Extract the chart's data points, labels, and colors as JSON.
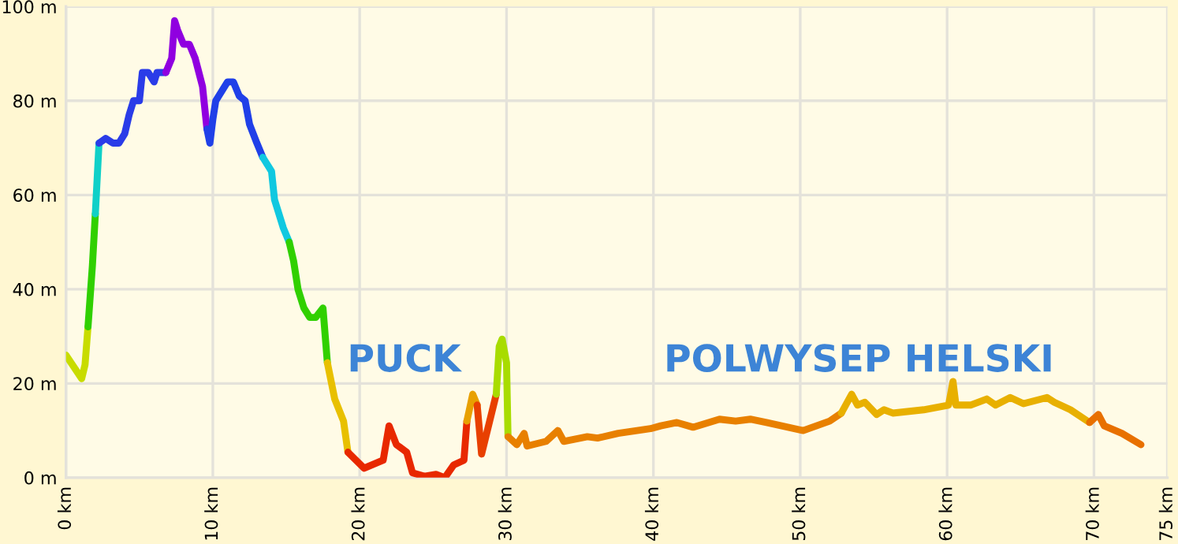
{
  "chart_data": {
    "type": "line",
    "series": [
      {
        "color": "#c8dc00",
        "x": [
          0,
          1.07,
          1.3,
          1.5
        ],
        "values": [
          26,
          21,
          24,
          32
        ]
      },
      {
        "color": "#30d000",
        "x": [
          1.5,
          1.8,
          2.0
        ],
        "values": [
          32,
          45,
          56
        ]
      },
      {
        "color": "#10d0c8",
        "x": [
          2.0,
          2.25
        ],
        "values": [
          56,
          71
        ]
      },
      {
        "color": "#2a3ce8",
        "x": [
          2.25,
          2.7,
          3.2,
          3.6,
          4.0,
          4.3,
          4.6,
          5.0,
          5.2,
          5.6,
          6.0,
          6.2,
          6.8
        ],
        "values": [
          71,
          72,
          71,
          71,
          73,
          77,
          80,
          80,
          86,
          86,
          84,
          86,
          86
        ]
      },
      {
        "color": "#9000e0",
        "x": [
          6.8,
          7.2,
          7.4,
          7.6,
          8.0,
          8.4,
          8.8,
          9.3,
          9.6
        ],
        "values": [
          86,
          89,
          97,
          95,
          92,
          92,
          89,
          83,
          74
        ]
      },
      {
        "color": "#2040e8",
        "x": [
          9.6,
          9.8,
          10.0,
          10.2,
          10.6,
          11.0,
          11.4,
          11.8,
          12.2,
          12.5,
          13.0,
          13.4
        ],
        "values": [
          74,
          71,
          76,
          80,
          82,
          84,
          84,
          81,
          80,
          75,
          71,
          68
        ]
      },
      {
        "color": "#10c8e0",
        "x": [
          13.4,
          14.0,
          14.2,
          14.8,
          15.2
        ],
        "values": [
          68,
          65,
          59,
          53,
          50
        ]
      },
      {
        "color": "#30d000",
        "x": [
          15.2,
          15.5,
          15.8,
          16.2,
          16.6,
          17.0,
          17.5,
          17.8
        ],
        "values": [
          50,
          46,
          40,
          36,
          34,
          34,
          36,
          24.4
        ]
      },
      {
        "color": "#e8c000",
        "x": [
          17.8,
          18.3,
          18.9,
          19.2
        ],
        "values": [
          24.4,
          16.7,
          12,
          5.4
        ]
      },
      {
        "color": "#e82800",
        "x": [
          19.2,
          20.3,
          21.6,
          22.0,
          22.5,
          23.2,
          23.6,
          24.4,
          25.2,
          25.8,
          26.4,
          27.1,
          27.3
        ],
        "values": [
          5.4,
          2,
          3.7,
          11,
          7,
          5.4,
          1,
          0.3,
          0.7,
          0,
          2.7,
          3.7,
          12
        ]
      },
      {
        "color": "#e8a000",
        "x": [
          27.3,
          27.7,
          28.0
        ],
        "values": [
          12,
          17.7,
          15.4
        ]
      },
      {
        "color": "#e84000",
        "x": [
          28.0,
          28.3,
          29.3
        ],
        "values": [
          15.4,
          5,
          17.7
        ]
      },
      {
        "color": "#a8dc00",
        "x": [
          29.3,
          29.5,
          29.7,
          30.0,
          30.1
        ],
        "values": [
          17.7,
          27.8,
          29.4,
          24.4,
          8.7
        ]
      },
      {
        "color": "#e88000",
        "x": [
          30.1,
          30.7,
          31.2,
          31.4,
          32.7,
          33.5,
          33.9,
          35.5,
          36.2,
          37.6,
          39.8,
          40.5,
          41.6,
          42.7,
          44.5,
          45.6,
          46.6,
          47.7,
          50.2,
          52.0,
          52.8
        ],
        "values": [
          8.7,
          7,
          9.4,
          6.7,
          7.7,
          10,
          7.7,
          8.7,
          8.4,
          9.4,
          10.4,
          11,
          11.7,
          10.7,
          12.4,
          12,
          12.4,
          11.7,
          10,
          12,
          13.7
        ]
      },
      {
        "color": "#e8b000",
        "x": [
          52.8,
          53.5,
          53.9,
          54.4,
          55.2,
          55.7,
          56.3,
          58.4,
          60.1,
          60.4,
          60.6,
          61.6,
          62.7,
          63.3,
          64.3,
          65.2,
          66.8,
          67.3,
          68.4,
          69.7
        ],
        "values": [
          13.7,
          17.7,
          15.4,
          16,
          13.4,
          14.4,
          13.7,
          14.4,
          15.4,
          20.4,
          15.4,
          15.4,
          16.7,
          15.4,
          17,
          15.7,
          17,
          16,
          14.4,
          11.7
        ]
      },
      {
        "color": "#e87000",
        "x": [
          69.7,
          70.3,
          70.7,
          71.9,
          73.2
        ],
        "values": [
          11.7,
          13.4,
          11,
          9.4,
          7
        ]
      }
    ],
    "xlim": [
      0,
      75
    ],
    "xticks": [
      {
        "value": 0,
        "label": "0 km"
      },
      {
        "value": 10,
        "label": "10 km"
      },
      {
        "value": 20,
        "label": "20 km"
      },
      {
        "value": 30,
        "label": "30 km"
      },
      {
        "value": 40,
        "label": "40 km"
      },
      {
        "value": 50,
        "label": "50 km"
      },
      {
        "value": 60,
        "label": "60 km"
      },
      {
        "value": 70,
        "label": "70 km"
      },
      {
        "value": 75,
        "label": "75 km"
      }
    ],
    "ylim": [
      0,
      100
    ],
    "yticks": [
      {
        "value": 0,
        "label": "0 m"
      },
      {
        "value": 20,
        "label": "20 m"
      },
      {
        "value": 40,
        "label": "40 m"
      },
      {
        "value": 60,
        "label": "60 m"
      },
      {
        "value": 80,
        "label": "80 m"
      },
      {
        "value": 100,
        "label": "100 m"
      }
    ],
    "grid": true,
    "annotations": [
      "PUCK",
      "POLWYSEP HELSKI"
    ]
  }
}
